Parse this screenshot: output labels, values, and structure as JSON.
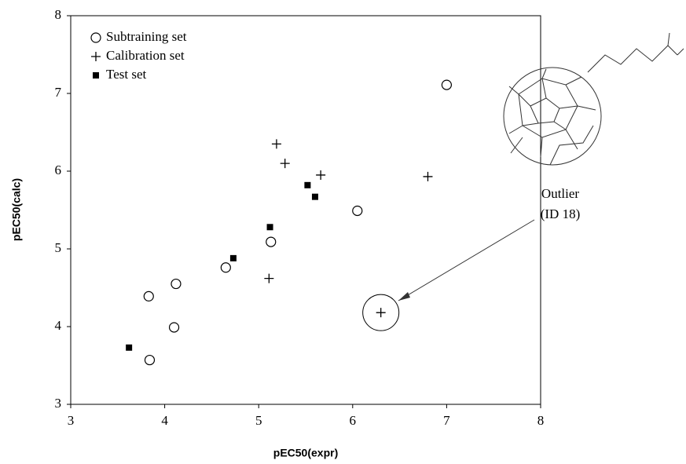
{
  "chart_data": {
    "type": "scatter",
    "xlabel": "pEC50(expr)",
    "ylabel": "pEC50(calc)",
    "xlim": [
      3,
      8
    ],
    "ylim": [
      3,
      8
    ],
    "xticks": [
      3,
      4,
      5,
      6,
      7,
      8
    ],
    "yticks": [
      3,
      4,
      5,
      6,
      7,
      8
    ],
    "grid": false,
    "legend": "upper left",
    "series": [
      {
        "name": "Subtraining set",
        "marker": "circle",
        "color": "#000000",
        "x": [
          7.0,
          6.05,
          5.13,
          4.65,
          3.83,
          4.12,
          4.1,
          3.84
        ],
        "values": [
          7.11,
          5.49,
          5.09,
          4.76,
          4.39,
          4.55,
          3.99,
          3.57
        ]
      },
      {
        "name": "Calibration set",
        "marker": "plus",
        "color": "#000000",
        "x": [
          5.19,
          5.28,
          5.66,
          6.8,
          5.11,
          6.3
        ],
        "values": [
          6.35,
          6.1,
          5.95,
          5.93,
          4.62,
          4.18
        ]
      },
      {
        "name": "Test set",
        "marker": "square",
        "color": "#000000",
        "x": [
          3.62,
          4.73,
          5.12,
          5.52,
          5.6
        ],
        "values": [
          3.73,
          4.88,
          5.28,
          5.82,
          5.67
        ]
      }
    ],
    "annotation": {
      "lines": [
        "Outlier",
        "(ID 18)"
      ],
      "series": 1,
      "point": 5
    }
  }
}
